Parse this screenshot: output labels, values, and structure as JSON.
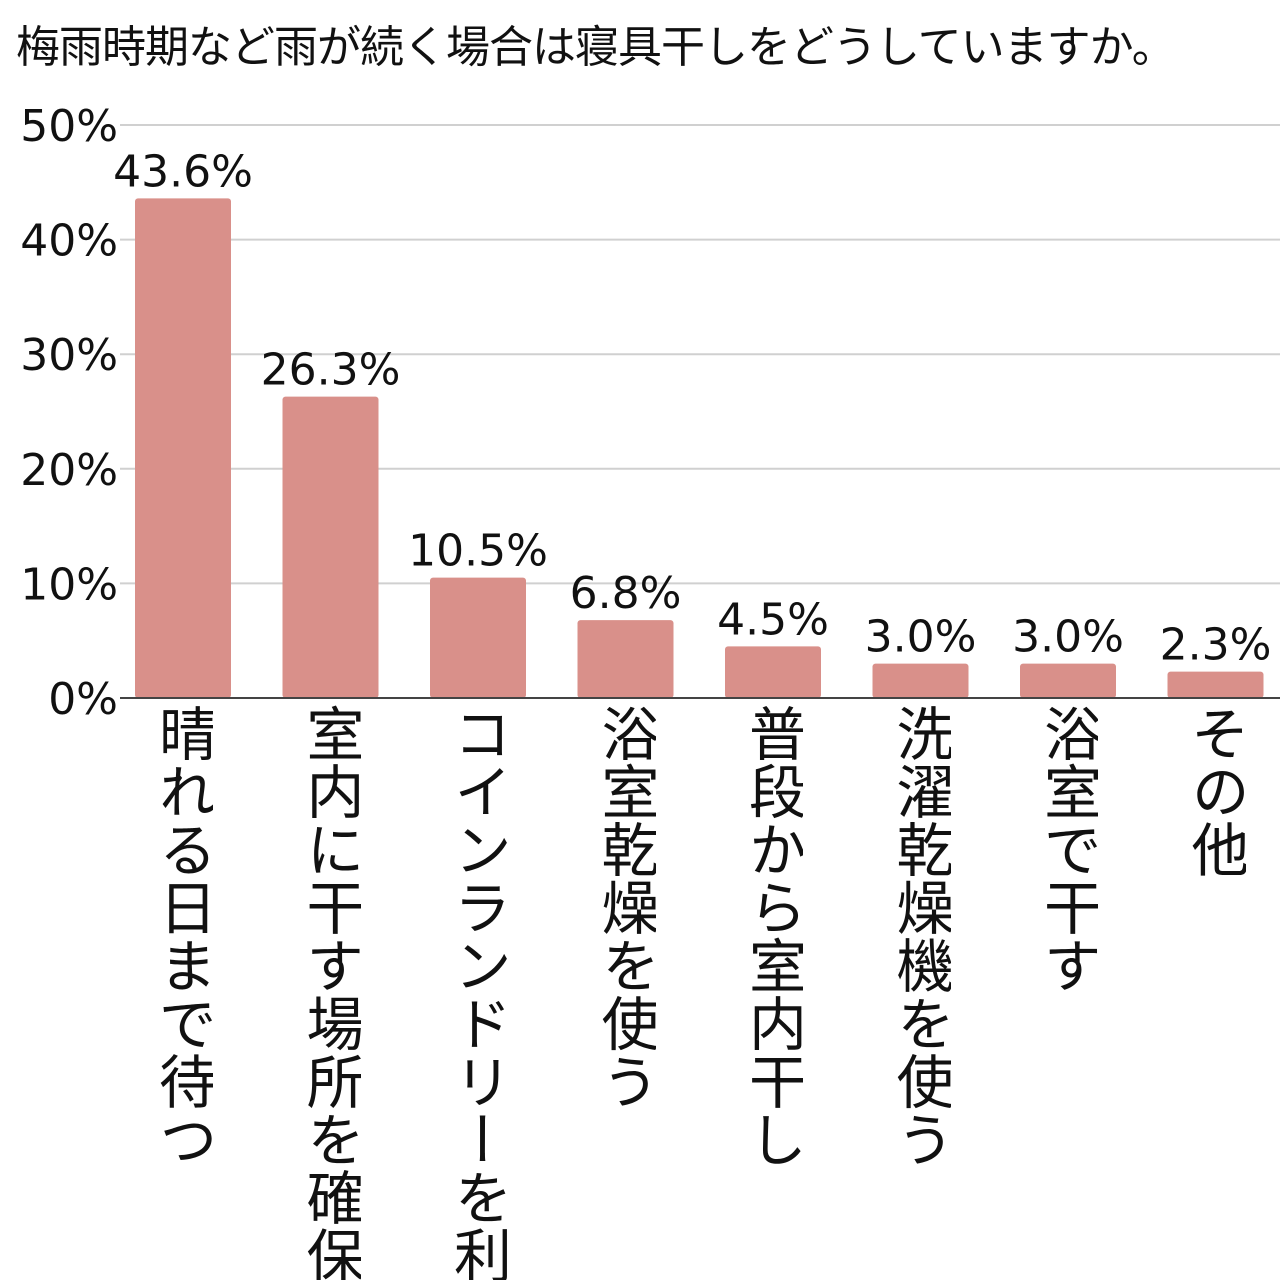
{
  "chart_data": {
    "type": "bar",
    "title": "梅雨時期など雨が続く場合は寝具干しをどうしていますか。",
    "categories": [
      "晴れる日まで待つ",
      "室内に干す場所を確保",
      "コインランドリーを利用",
      "浴室乾燥を使う",
      "普段から室内干し",
      "洗濯乾燥機を使う",
      "浴室で干す",
      "その他"
    ],
    "values": [
      43.6,
      26.3,
      10.5,
      6.8,
      4.5,
      3.0,
      3.0,
      2.3
    ],
    "value_labels": [
      "43.6%",
      "26.3%",
      "10.5%",
      "6.8%",
      "4.5%",
      "3.0%",
      "3.0%",
      "2.3%"
    ],
    "yticks": [
      "0%",
      "10%",
      "20%",
      "30%",
      "40%",
      "50%"
    ],
    "ylim": [
      0,
      50
    ],
    "xlabel": "",
    "ylabel": "",
    "grid": true,
    "bar_color": "#d9908a"
  }
}
